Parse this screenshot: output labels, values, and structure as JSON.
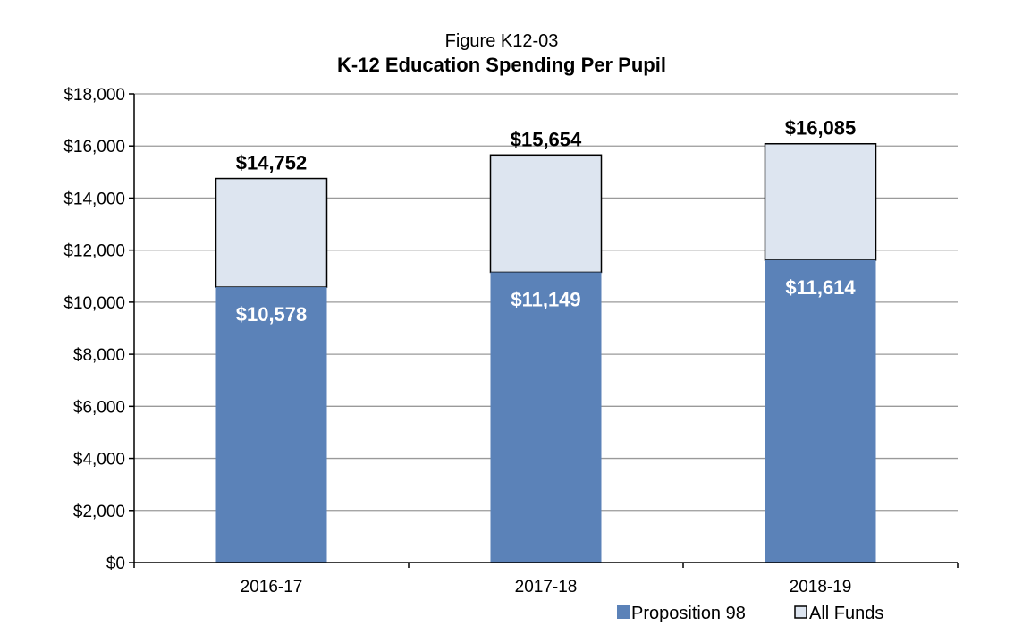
{
  "figure_label": "Figure K12-03",
  "colors": {
    "proposition_98": "#5b82b8",
    "all_funds": "#dde5f0",
    "grid": "#9a9a9a",
    "axis": "#000000",
    "bar_outline": "#000000"
  },
  "chart_data": {
    "type": "bar",
    "stacked": true,
    "title": "K-12 Education Spending Per Pupil",
    "categories": [
      "2016-17",
      "2017-18",
      "2018-19"
    ],
    "series": [
      {
        "name": "Proposition 98",
        "values": [
          10578,
          11149,
          11614
        ],
        "labels": [
          "$10,578",
          "$11,149",
          "$11,614"
        ]
      },
      {
        "name": "All Funds",
        "values": [
          4174,
          4505,
          4471
        ]
      }
    ],
    "totals": [
      14752,
      15654,
      16085
    ],
    "total_labels": [
      "$14,752",
      "$15,654",
      "$16,085"
    ],
    "ylim": [
      0,
      18000
    ],
    "yticks": [
      0,
      2000,
      4000,
      6000,
      8000,
      10000,
      12000,
      14000,
      16000,
      18000
    ],
    "ytick_labels": [
      "$0",
      "$2,000",
      "$4,000",
      "$6,000",
      "$8,000",
      "$10,000",
      "$12,000",
      "$14,000",
      "$16,000",
      "$18,000"
    ],
    "xlabel": "",
    "ylabel": "",
    "grid": true,
    "legend": {
      "position": "bottom-right",
      "entries": [
        "Proposition 98",
        "All Funds"
      ]
    }
  }
}
